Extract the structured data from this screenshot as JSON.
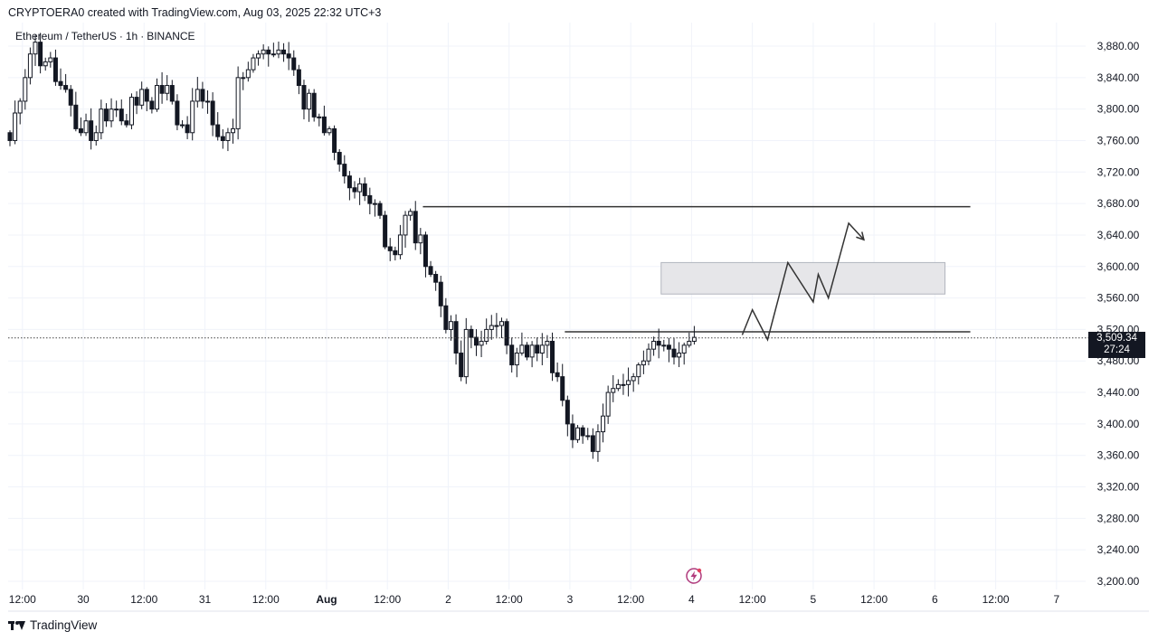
{
  "header": {
    "attribution": "CRYPTOERA0 created with TradingView.com, Aug 03, 2025 22:32 UTC+3",
    "symbol_name": "Ethereum / TetherUS",
    "interval": "1h",
    "exchange": "BINANCE"
  },
  "footer": {
    "brand": "TradingView"
  },
  "price_tag": {
    "price": "3,509.34",
    "countdown": "27:24"
  },
  "icons": {
    "alert": "lightning-alert-icon",
    "logo": "tradingview-logo-icon"
  },
  "colors": {
    "candle": "#131722",
    "grid": "#f0f3fa",
    "zone_fill": "#e6e6e9",
    "zone_border": "#b2b5be",
    "line": "#333333",
    "alert": "#b03a7c"
  },
  "chart_data": {
    "type": "candlestick",
    "symbol": "Ethereum / TetherUS",
    "timeframe": "1h",
    "y_axis": {
      "range": [
        3180,
        3900
      ],
      "ticks": [
        "3,880.00",
        "3,840.00",
        "3,800.00",
        "3,760.00",
        "3,720.00",
        "3,680.00",
        "3,640.00",
        "3,600.00",
        "3,560.00",
        "3,520.00",
        "3,480.00",
        "3,440.00",
        "3,400.00",
        "3,360.00",
        "3,320.00",
        "3,280.00",
        "3,240.00",
        "3,200.00"
      ],
      "tick_values": [
        3880,
        3840,
        3800,
        3760,
        3720,
        3680,
        3640,
        3600,
        3560,
        3520,
        3480,
        3440,
        3400,
        3360,
        3320,
        3280,
        3240,
        3200
      ]
    },
    "x_axis": {
      "start_hours": 0,
      "ticks": [
        {
          "h": 3,
          "label": "12:00"
        },
        {
          "h": 15,
          "label": "30"
        },
        {
          "h": 27,
          "label": "12:00"
        },
        {
          "h": 39,
          "label": "31"
        },
        {
          "h": 51,
          "label": "12:00"
        },
        {
          "h": 63,
          "label": "Aug"
        },
        {
          "h": 75,
          "label": "12:00"
        },
        {
          "h": 87,
          "label": "2"
        },
        {
          "h": 99,
          "label": "12:00"
        },
        {
          "h": 111,
          "label": "3"
        },
        {
          "h": 123,
          "label": "12:00"
        },
        {
          "h": 135,
          "label": "4"
        },
        {
          "h": 147,
          "label": "12:00"
        },
        {
          "h": 159,
          "label": "5"
        },
        {
          "h": 171,
          "label": "12:00"
        },
        {
          "h": 183,
          "label": "6"
        },
        {
          "h": 195,
          "label": "12:00"
        },
        {
          "h": 207,
          "label": "7"
        }
      ]
    },
    "candles_close": [
      3760,
      3795,
      3810,
      3840,
      3870,
      3885,
      3855,
      3860,
      3865,
      3835,
      3830,
      3825,
      3805,
      3775,
      3770,
      3785,
      3760,
      3770,
      3800,
      3785,
      3800,
      3800,
      3785,
      3780,
      3815,
      3805,
      3825,
      3810,
      3800,
      3830,
      3820,
      3830,
      3810,
      3780,
      3780,
      3770,
      3810,
      3825,
      3810,
      3810,
      3780,
      3765,
      3760,
      3770,
      3775,
      3840,
      3840,
      3850,
      3865,
      3870,
      3875,
      3870,
      3870,
      3875,
      3870,
      3865,
      3850,
      3830,
      3800,
      3820,
      3790,
      3790,
      3770,
      3775,
      3745,
      3730,
      3715,
      3700,
      3695,
      3705,
      3690,
      3680,
      3680,
      3665,
      3625,
      3620,
      3615,
      3640,
      3665,
      3670,
      3630,
      3640,
      3600,
      3590,
      3580,
      3550,
      3520,
      3530,
      3490,
      3460,
      3520,
      3510,
      3500,
      3505,
      3520,
      3525,
      3525,
      3530,
      3500,
      3475,
      3490,
      3500,
      3485,
      3500,
      3490,
      3500,
      3505,
      3465,
      3460,
      3430,
      3400,
      3380,
      3395,
      3385,
      3385,
      3365,
      3390,
      3410,
      3440,
      3445,
      3450,
      3450,
      3455,
      3460,
      3475,
      3480,
      3495,
      3505,
      3500,
      3500,
      3495,
      3485,
      3490,
      3500,
      3505,
      3510
    ],
    "scenario_path": [
      {
        "h": 145,
        "p": 3513
      },
      {
        "h": 147,
        "p": 3545
      },
      {
        "h": 150,
        "p": 3507
      },
      {
        "h": 154,
        "p": 3605
      },
      {
        "h": 159,
        "p": 3555
      },
      {
        "h": 160,
        "p": 3590
      },
      {
        "h": 162,
        "p": 3560
      },
      {
        "h": 166,
        "p": 3655
      },
      {
        "h": 169,
        "p": 3634
      }
    ],
    "levels": [
      {
        "price": 3676,
        "from_h": 82,
        "to_h": 190
      },
      {
        "price": 3517,
        "from_h": 110,
        "to_h": 190
      }
    ],
    "zone": {
      "from_h": 129,
      "to_h": 185,
      "low": 3565,
      "high": 3605
    },
    "last_price": 3509.34
  }
}
